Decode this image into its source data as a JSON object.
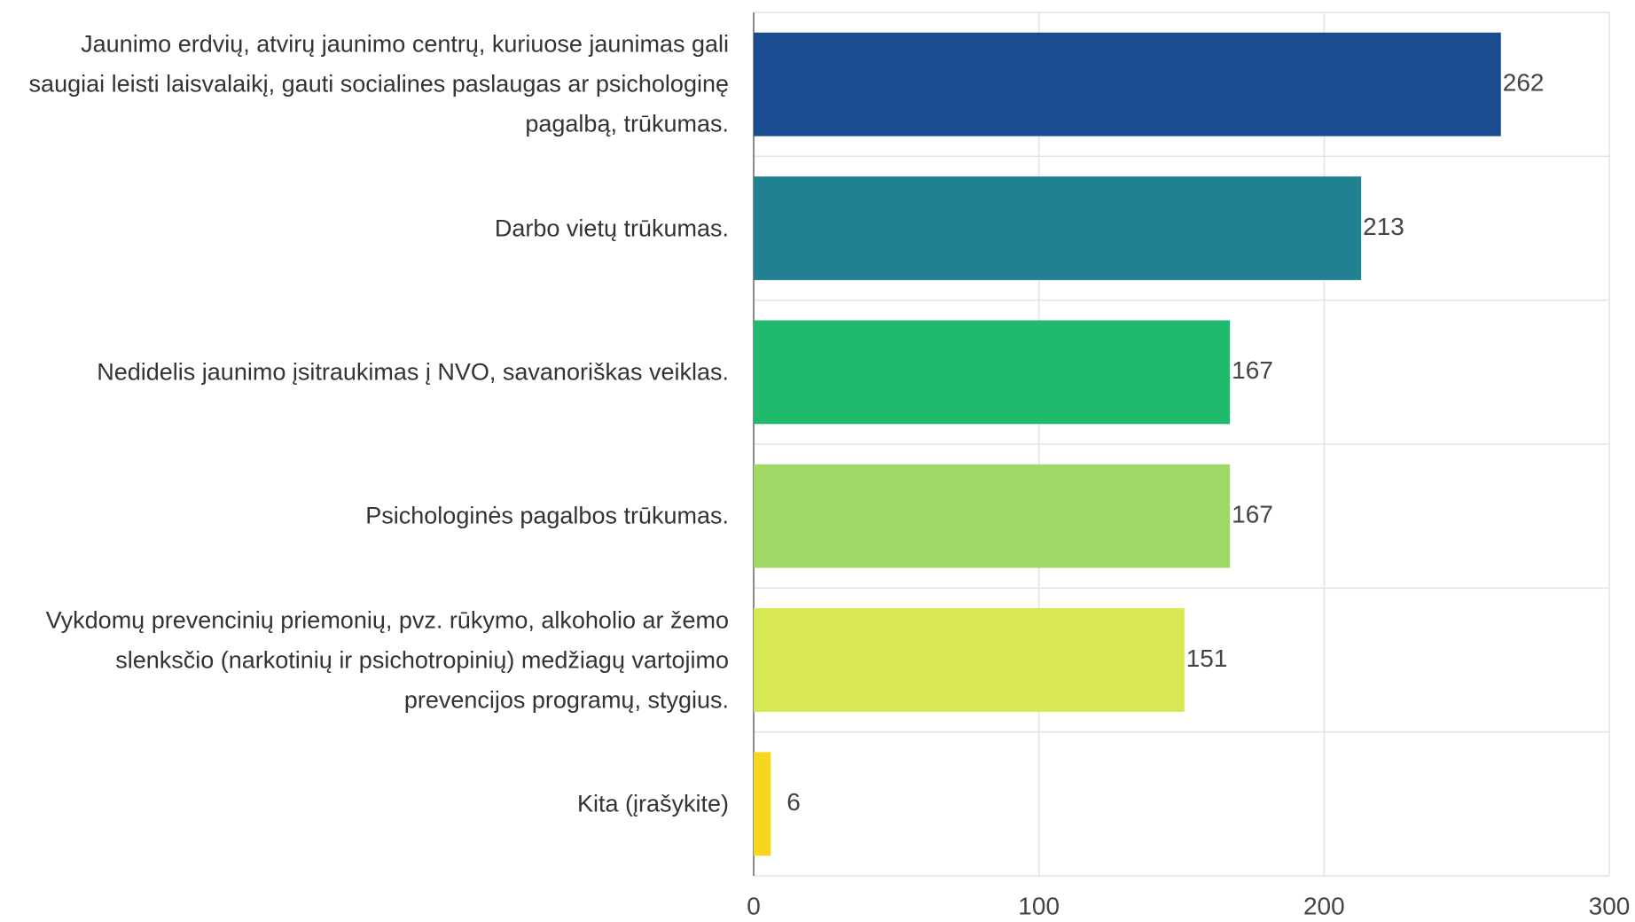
{
  "chart_data": {
    "type": "hbar",
    "categories": [
      "Jaunimo erdvių, atvirų jaunimo centrų, kuriuose jaunimas gali saugiai leisti laisvalaikį, gauti socialines paslaugas ar psichologinę pagalbą, trūkumas.",
      "Darbo vietų trūkumas.",
      "Nedidelis jaunimo įsitraukimas į NVO, savanoriškas veiklas.",
      "Psichologinės pagalbos trūkumas.",
      "Vykdomų prevencinių priemonių, pvz. rūkymo, alkoholio ar žemo slenksčio (narkotinių ir psichotropinių) medžiagų vartojimo prevencijos programų, stygius.",
      "Kita (įrašykite)"
    ],
    "values": [
      262,
      213,
      167,
      167,
      151,
      6
    ],
    "colors": [
      "#1a4d8f",
      "#218191",
      "#1fba6e",
      "#a0d865",
      "#d8e852",
      "#f7d61f"
    ],
    "xlim": [
      0,
      300
    ],
    "xticks": [
      0,
      100,
      200,
      300
    ],
    "grid": true
  }
}
